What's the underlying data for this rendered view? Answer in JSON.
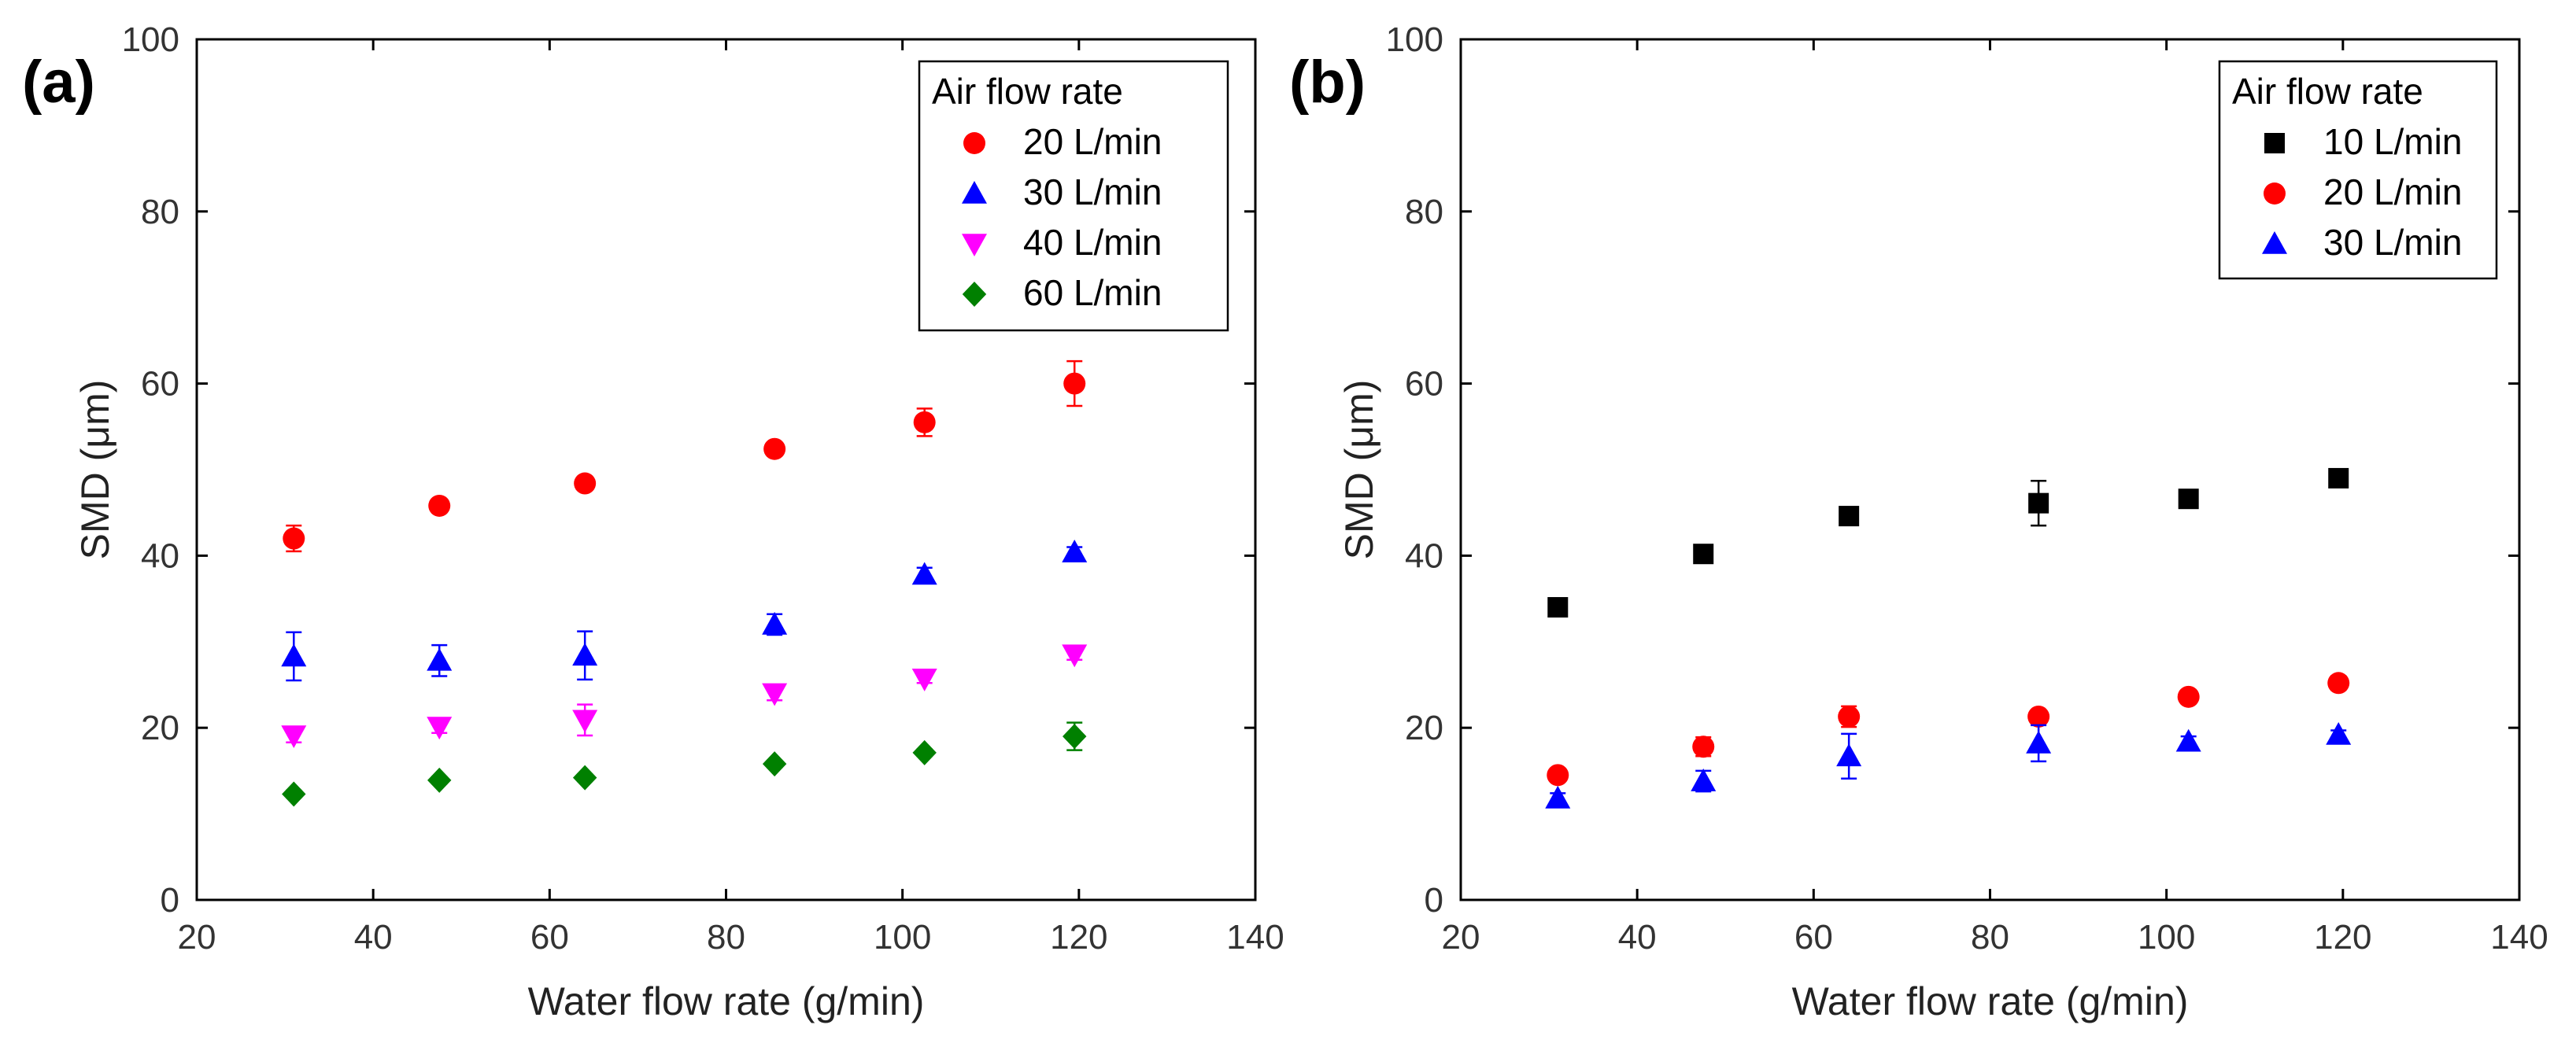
{
  "chart_data": [
    {
      "panel_label": "(a)",
      "type": "scatter",
      "xlabel": "Water flow rate (g/min)",
      "ylabel": "SMD (μm)",
      "xlim": [
        20,
        140
      ],
      "ylim": [
        0,
        100
      ],
      "xticks": [
        20,
        40,
        60,
        80,
        100,
        120,
        140
      ],
      "yticks": [
        0,
        20,
        40,
        60,
        80,
        100
      ],
      "legend_title": "Air flow rate",
      "legend_position": "top-right",
      "x": [
        31,
        47.5,
        64,
        85.5,
        102.5,
        119.5
      ],
      "series": [
        {
          "name": "20 L/min",
          "marker": "circle",
          "color": "#ff0000",
          "values": [
            42,
            45.8,
            48.4,
            52.4,
            55.5,
            60
          ],
          "errors": [
            1.5,
            0.6,
            0.6,
            0.5,
            1.6,
            2.6
          ]
        },
        {
          "name": "30 L/min",
          "marker": "triangle-up",
          "color": "#0000ff",
          "values": [
            28.3,
            27.8,
            28.4,
            32,
            37.8,
            40.4
          ],
          "errors": [
            2.8,
            1.8,
            2.8,
            1.2,
            0.8,
            0.6
          ]
        },
        {
          "name": "40 L/min",
          "marker": "triangle-down",
          "color": "#ff00ff",
          "values": [
            19.1,
            20.1,
            20.9,
            24,
            25.7,
            28.5
          ],
          "errors": [
            0.8,
            0.7,
            1.8,
            0.8,
            0.5,
            0.6
          ]
        },
        {
          "name": "60 L/min",
          "marker": "diamond",
          "color": "#008000",
          "values": [
            12.3,
            13.9,
            14.2,
            15.8,
            17.1,
            19
          ],
          "errors": [
            0.4,
            0.4,
            0.4,
            0.4,
            0.4,
            1.6
          ]
        }
      ]
    },
    {
      "panel_label": "(b)",
      "type": "scatter",
      "xlabel": "Water flow rate (g/min)",
      "ylabel": "SMD (μm)",
      "xlim": [
        20,
        140
      ],
      "ylim": [
        0,
        100
      ],
      "xticks": [
        20,
        40,
        60,
        80,
        100,
        120,
        140
      ],
      "yticks": [
        0,
        20,
        40,
        60,
        80,
        100
      ],
      "legend_title": "Air flow rate",
      "legend_position": "top-right",
      "x": [
        31,
        47.5,
        64,
        85.5,
        102.5,
        119.5
      ],
      "series": [
        {
          "name": "10 L/min",
          "marker": "square",
          "color": "#000000",
          "values": [
            34,
            40.2,
            44.6,
            46.1,
            46.6,
            49
          ],
          "errors": [
            0.8,
            0.4,
            0.4,
            2.6,
            0.5,
            0.4
          ]
        },
        {
          "name": "20 L/min",
          "marker": "circle",
          "color": "#ff0000",
          "values": [
            14.5,
            17.8,
            21.3,
            21.3,
            23.6,
            25.2
          ],
          "errors": [
            0.5,
            1.1,
            1.2,
            0.6,
            0.6,
            0.8
          ]
        },
        {
          "name": "30 L/min",
          "marker": "triangle-up",
          "color": "#0000ff",
          "values": [
            11.8,
            13.8,
            16.7,
            18.2,
            18.4,
            19.2
          ],
          "errors": [
            0.6,
            1.2,
            2.6,
            2.1,
            0.6,
            0.5
          ]
        }
      ]
    }
  ]
}
